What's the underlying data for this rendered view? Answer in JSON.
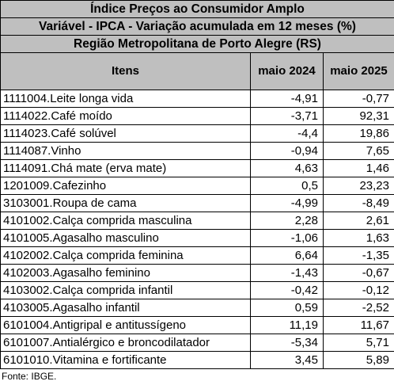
{
  "header": {
    "line1": "Índice Preços ao Consumidor Amplo",
    "line2": "Variável - IPCA - Variação acumulada em 12 meses (%)",
    "line3": "Região Metropolitana de Porto Alegre (RS)"
  },
  "columns": {
    "items": "Itens",
    "col_2024": "maio 2024",
    "col_2025": "maio 2025"
  },
  "rows": [
    {
      "item": "1111004.Leite longa vida",
      "v2024": "-4,91",
      "v2025": "-0,77"
    },
    {
      "item": "1114022.Café moído",
      "v2024": "-3,71",
      "v2025": "92,31"
    },
    {
      "item": "1114023.Café solúvel",
      "v2024": "-4,4",
      "v2025": "19,86"
    },
    {
      "item": "1114087.Vinho",
      "v2024": "-0,94",
      "v2025": "7,65"
    },
    {
      "item": "1114091.Chá mate (erva mate)",
      "v2024": "4,63",
      "v2025": "1,46"
    },
    {
      "item": "1201009.Cafezinho",
      "v2024": "0,5",
      "v2025": "23,23"
    },
    {
      "item": "3103001.Roupa de cama",
      "v2024": "-4,99",
      "v2025": "-8,49"
    },
    {
      "item": "4101002.Calça comprida masculina",
      "v2024": "2,28",
      "v2025": "2,61"
    },
    {
      "item": "4101005.Agasalho masculino",
      "v2024": "-1,06",
      "v2025": "1,63"
    },
    {
      "item": "4102002.Calça comprida feminina",
      "v2024": "6,64",
      "v2025": "-1,35"
    },
    {
      "item": "4102003.Agasalho feminino",
      "v2024": "-1,43",
      "v2025": "-0,67"
    },
    {
      "item": "4103002.Calça comprida infantil",
      "v2024": "-0,42",
      "v2025": "-0,12"
    },
    {
      "item": "4103005.Agasalho infantil",
      "v2024": "0,59",
      "v2025": "-2,52"
    },
    {
      "item": "6101004.Antigripal e antitussígeno",
      "v2024": "11,19",
      "v2025": "11,67"
    },
    {
      "item": "6101007.Antialérgico e broncodilatador",
      "v2024": "-5,34",
      "v2025": "5,71"
    },
    {
      "item": "6101010.Vitamina e fortificante",
      "v2024": "3,45",
      "v2025": "5,89"
    }
  ],
  "source": "Fonte: IBGE."
}
